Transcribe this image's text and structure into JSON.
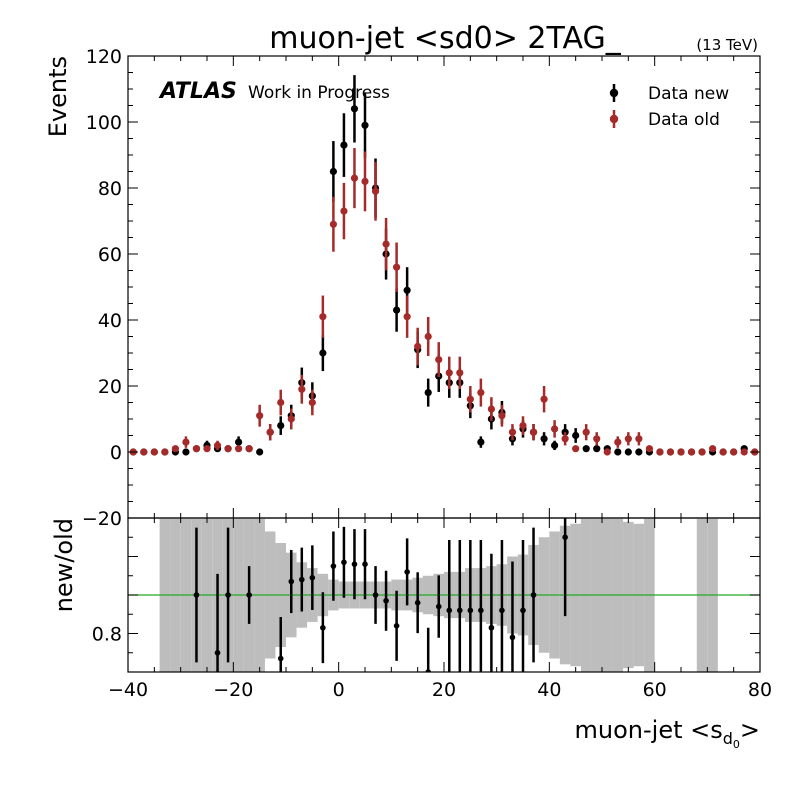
{
  "chart_data": [
    {
      "type": "scatter",
      "title": "muon-jet <sd0> 2TAG_",
      "energy_label": "(13 TeV)",
      "atlas_label": "ATLAS",
      "atlas_sublabel": "Work in Progress",
      "ylabel": "Events",
      "ylim": [
        -20,
        120
      ],
      "xlim": [
        -40,
        80
      ],
      "y_ticks": [
        -20,
        0,
        20,
        40,
        60,
        80,
        100,
        120
      ],
      "legend_position": "top-right",
      "series": [
        {
          "name": "Data new",
          "color": "#000000",
          "x": [
            -39,
            -37,
            -35,
            -33,
            -31,
            -29,
            -27,
            -25,
            -23,
            -21,
            -19,
            -17,
            -15,
            -13,
            -11,
            -9,
            -7,
            -5,
            -3,
            -1,
            1,
            3,
            5,
            7,
            9,
            11,
            13,
            15,
            17,
            19,
            21,
            23,
            25,
            27,
            29,
            31,
            33,
            35,
            37,
            39,
            41,
            43,
            45,
            47,
            49,
            51,
            53,
            55,
            57,
            59,
            61,
            63,
            65,
            67,
            69,
            71,
            73,
            75,
            77,
            79
          ],
          "y": [
            0,
            0,
            0,
            0,
            0,
            0,
            1,
            2,
            1,
            1,
            3,
            1,
            0,
            6,
            8,
            11,
            21,
            17,
            30,
            85,
            93,
            104,
            99,
            80,
            60,
            43,
            49,
            31,
            18,
            23,
            21,
            21,
            14,
            3,
            10,
            12,
            4,
            7,
            6,
            4,
            2,
            6,
            5,
            1,
            1,
            1,
            0,
            0,
            0,
            0,
            0,
            0,
            0,
            0,
            0,
            0,
            0,
            0,
            1,
            0
          ]
        },
        {
          "name": "Data old",
          "color": "#a52a2a",
          "x": [
            -39,
            -37,
            -35,
            -33,
            -31,
            -29,
            -27,
            -25,
            -23,
            -21,
            -19,
            -17,
            -15,
            -13,
            -11,
            -9,
            -7,
            -5,
            -3,
            -1,
            1,
            3,
            5,
            7,
            9,
            11,
            13,
            15,
            17,
            19,
            21,
            23,
            25,
            27,
            29,
            31,
            33,
            35,
            37,
            39,
            41,
            43,
            45,
            47,
            49,
            51,
            53,
            55,
            57,
            59,
            61,
            63,
            65,
            67,
            69,
            71,
            73,
            75,
            77,
            79
          ],
          "y": [
            0,
            0,
            0,
            0,
            1,
            3,
            1,
            1,
            2,
            1,
            1,
            1,
            11,
            6,
            15,
            10,
            19,
            15,
            41,
            69,
            73,
            83,
            82,
            79,
            63,
            56,
            41,
            32,
            35,
            28,
            24,
            24,
            16,
            18,
            13,
            11,
            6,
            8,
            6,
            16,
            7,
            4,
            1,
            6,
            4,
            0,
            3,
            4,
            4,
            1,
            0,
            0,
            0,
            0,
            0,
            1,
            0,
            0,
            0,
            0
          ]
        }
      ]
    },
    {
      "type": "scatter",
      "xlabel": "muon-jet <s",
      "xlabel_sub": "d",
      "xlabel_subsub": "0",
      "xlabel_close": ">",
      "ylabel": "new/old",
      "ylim": [
        0.6,
        1.4
      ],
      "xlim": [
        -40,
        80
      ],
      "y_ticks": [
        0.8
      ],
      "x_ticks": [
        -40,
        -20,
        0,
        20,
        40,
        60,
        80
      ],
      "reference_line": 1.0,
      "reference_color": "#22aa22",
      "uncertainty_band": {
        "color": "#bdbdbd",
        "x": [
          -33,
          -31,
          -29,
          -27,
          -25,
          -23,
          -21,
          -19,
          -17,
          -15,
          -13,
          -11,
          -9,
          -7,
          -5,
          -3,
          -1,
          1,
          3,
          5,
          7,
          9,
          11,
          13,
          15,
          17,
          19,
          21,
          23,
          25,
          27,
          29,
          31,
          33,
          35,
          37,
          39,
          41,
          43,
          45,
          47,
          49,
          51,
          53,
          55,
          57,
          59,
          69,
          71
        ],
        "lo": [
          0.6,
          0.6,
          0.6,
          0.6,
          0.6,
          0.6,
          0.6,
          0.6,
          0.6,
          0.6,
          0.67,
          0.73,
          0.78,
          0.83,
          0.86,
          0.89,
          0.92,
          0.93,
          0.93,
          0.93,
          0.93,
          0.93,
          0.92,
          0.92,
          0.91,
          0.9,
          0.89,
          0.88,
          0.88,
          0.86,
          0.86,
          0.85,
          0.84,
          0.8,
          0.79,
          0.74,
          0.7,
          0.67,
          0.64,
          0.63,
          0.6,
          0.6,
          0.6,
          0.6,
          0.62,
          0.63,
          0.6,
          0.6,
          0.6
        ],
        "hi": [
          1.4,
          1.4,
          1.4,
          1.4,
          1.4,
          1.4,
          1.4,
          1.4,
          1.4,
          1.4,
          1.33,
          1.27,
          1.22,
          1.17,
          1.14,
          1.11,
          1.08,
          1.07,
          1.07,
          1.07,
          1.07,
          1.07,
          1.08,
          1.08,
          1.09,
          1.1,
          1.11,
          1.12,
          1.12,
          1.14,
          1.14,
          1.15,
          1.16,
          1.2,
          1.21,
          1.26,
          1.3,
          1.33,
          1.36,
          1.37,
          1.4,
          1.4,
          1.4,
          1.4,
          1.38,
          1.37,
          1.4,
          1.4,
          1.4
        ]
      },
      "series": [
        {
          "name": "new/old",
          "color": "#000000",
          "x": [
            -27,
            -23,
            -21,
            -17,
            -11,
            -9,
            -7,
            -5,
            -3,
            -1,
            1,
            3,
            5,
            7,
            9,
            11,
            13,
            15,
            17,
            19,
            21,
            23,
            25,
            27,
            29,
            31,
            33,
            35,
            37,
            43
          ],
          "y": [
            1.0,
            0.7,
            1.0,
            1.0,
            0.67,
            1.07,
            1.08,
            1.09,
            0.83,
            1.15,
            1.17,
            1.16,
            1.16,
            1.0,
            0.97,
            0.84,
            1.12,
            0.96,
            0.6,
            0.94,
            0.92,
            0.92,
            0.92,
            0.92,
            0.83,
            0.92,
            0.78,
            0.92,
            1.0,
            1.3
          ]
        }
      ]
    }
  ],
  "legend": {
    "items": [
      {
        "label": "Data new",
        "color": "#000000"
      },
      {
        "label": "Data old",
        "color": "#a52a2a"
      }
    ]
  }
}
